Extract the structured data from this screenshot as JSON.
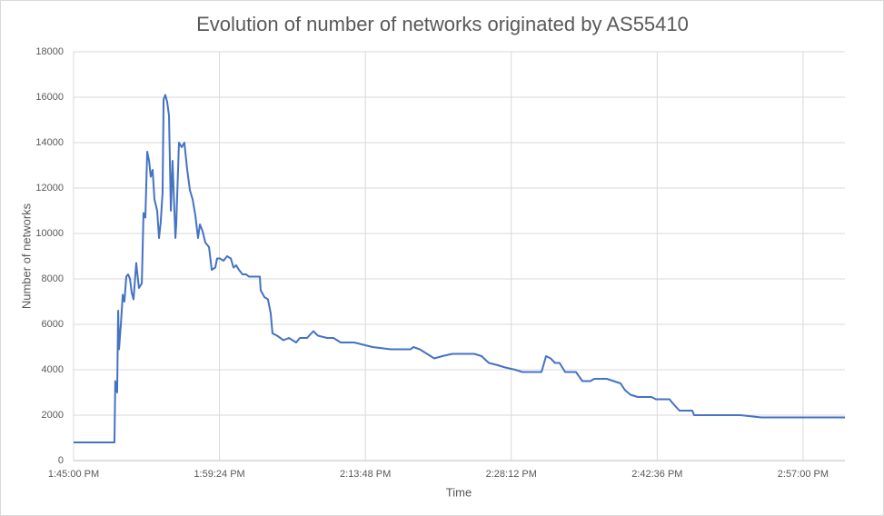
{
  "chart_data": {
    "type": "line",
    "title": "Evolution of number of networks originated by AS55410",
    "x_label": "Time",
    "y_label": "Number of networks",
    "color": "#4472c4",
    "grid": true,
    "xlim": [
      "1:45:00 PM",
      "3:01:08 PM"
    ],
    "xticks": [
      "1:45:00 PM",
      "1:59:24 PM",
      "2:13:48 PM",
      "2:28:12 PM",
      "2:42:36 PM",
      "2:57:00 PM"
    ],
    "ylim": [
      0,
      18000
    ],
    "yticks": [
      0,
      2000,
      4000,
      6000,
      8000,
      10000,
      12000,
      14000,
      16000,
      18000
    ],
    "x": [
      "1:45:00 PM",
      "1:49:02 PM",
      "1:49:07 PM",
      "1:49:18 PM",
      "1:49:24 PM",
      "1:49:29 PM",
      "1:49:40 PM",
      "1:49:51 PM",
      "1:50:01 PM",
      "1:50:12 PM",
      "1:50:23 PM",
      "1:50:34 PM",
      "1:50:44 PM",
      "1:50:55 PM",
      "1:51:11 PM",
      "1:51:27 PM",
      "1:51:44 PM",
      "1:51:54 PM",
      "1:52:05 PM",
      "1:52:16 PM",
      "1:52:27 PM",
      "1:52:37 PM",
      "1:52:48 PM",
      "1:52:59 PM",
      "1:53:15 PM",
      "1:53:26 PM",
      "1:53:36 PM",
      "1:53:47 PM",
      "1:53:53 PM",
      "1:54:03 PM",
      "1:54:14 PM",
      "1:54:25 PM",
      "1:54:36 PM",
      "1:54:46 PM",
      "1:55:03 PM",
      "1:55:08 PM",
      "1:55:24 PM",
      "1:55:40 PM",
      "1:55:56 PM",
      "1:56:13 PM",
      "1:56:29 PM",
      "1:56:45 PM",
      "1:57:01 PM",
      "1:57:17 PM",
      "1:57:28 PM",
      "1:57:44 PM",
      "1:58:00 PM",
      "1:58:22 PM",
      "1:58:38 PM",
      "1:58:59 PM",
      "1:59:10 PM",
      "1:59:26 PM",
      "1:59:48 PM",
      "2:00:09 PM",
      "2:00:31 PM",
      "2:00:47 PM",
      "2:01:03 PM",
      "2:01:19 PM",
      "2:01:41 PM",
      "2:02:02 PM",
      "2:02:18 PM",
      "2:03:23 PM",
      "2:03:28 PM",
      "2:03:50 PM",
      "2:04:11 PM",
      "2:04:27 PM",
      "2:04:38 PM",
      "2:05:05 PM",
      "2:05:43 PM",
      "2:06:15 PM",
      "2:06:58 PM",
      "2:07:20 PM",
      "2:08:03 PM",
      "2:08:40 PM",
      "2:09:07 PM",
      "2:10:01 PM",
      "2:10:39 PM",
      "2:11:22 PM",
      "2:12:42 PM",
      "2:13:36 PM",
      "2:14:30 PM",
      "2:16:18 PM",
      "2:18:16 PM",
      "2:18:32 PM",
      "2:19:10 PM",
      "2:19:53 PM",
      "2:20:36 PM",
      "2:21:24 PM",
      "2:22:23 PM",
      "2:23:28 PM",
      "2:24:33 PM",
      "2:25:16 PM",
      "2:25:59 PM",
      "2:26:52 PM",
      "2:27:36 PM",
      "2:28:35 PM",
      "2:29:18 PM",
      "2:29:50 PM",
      "2:31:11 PM",
      "2:31:38 PM",
      "2:32:05 PM",
      "2:32:31 PM",
      "2:32:58 PM",
      "2:33:31 PM",
      "2:34:35 PM",
      "2:35:13 PM",
      "2:36:01 PM",
      "2:36:23 PM",
      "2:37:38 PM",
      "2:38:59 PM",
      "2:39:26 PM",
      "2:39:58 PM",
      "2:40:41 PM",
      "2:42:02 PM",
      "2:42:29 PM",
      "2:43:49 PM",
      "2:44:11 PM",
      "2:44:48 PM",
      "2:46:04 PM",
      "2:46:15 PM",
      "2:48:34 PM",
      "2:50:49 PM",
      "2:52:53 PM",
      "3:01:08 PM"
    ],
    "values": [
      800,
      800,
      3500,
      3000,
      6600,
      4900,
      6000,
      7300,
      7000,
      8100,
      8200,
      8000,
      7400,
      7100,
      8700,
      7600,
      7800,
      10900,
      10700,
      13600,
      13200,
      12500,
      12800,
      11500,
      11000,
      9800,
      10500,
      11800,
      15900,
      16100,
      15800,
      15200,
      11000,
      13200,
      9800,
      10400,
      14000,
      13800,
      14000,
      12800,
      11900,
      11500,
      10800,
      9800,
      10400,
      10100,
      9600,
      9400,
      8400,
      8500,
      8900,
      8900,
      8800,
      9000,
      8900,
      8500,
      8600,
      8400,
      8200,
      8200,
      8100,
      8100,
      7500,
      7200,
      7100,
      6500,
      5600,
      5500,
      5300,
      5400,
      5200,
      5400,
      5400,
      5700,
      5500,
      5400,
      5400,
      5200,
      5200,
      5100,
      5000,
      4900,
      4900,
      5000,
      4900,
      4700,
      4500,
      4600,
      4700,
      4700,
      4700,
      4600,
      4300,
      4200,
      4100,
      4000,
      3900,
      3900,
      3900,
      4600,
      4500,
      4300,
      4300,
      3900,
      3900,
      3500,
      3500,
      3600,
      3600,
      3400,
      3100,
      2900,
      2800,
      2800,
      2700,
      2700,
      2500,
      2200,
      2200,
      2000,
      2000,
      2000,
      1900,
      1900
    ]
  }
}
